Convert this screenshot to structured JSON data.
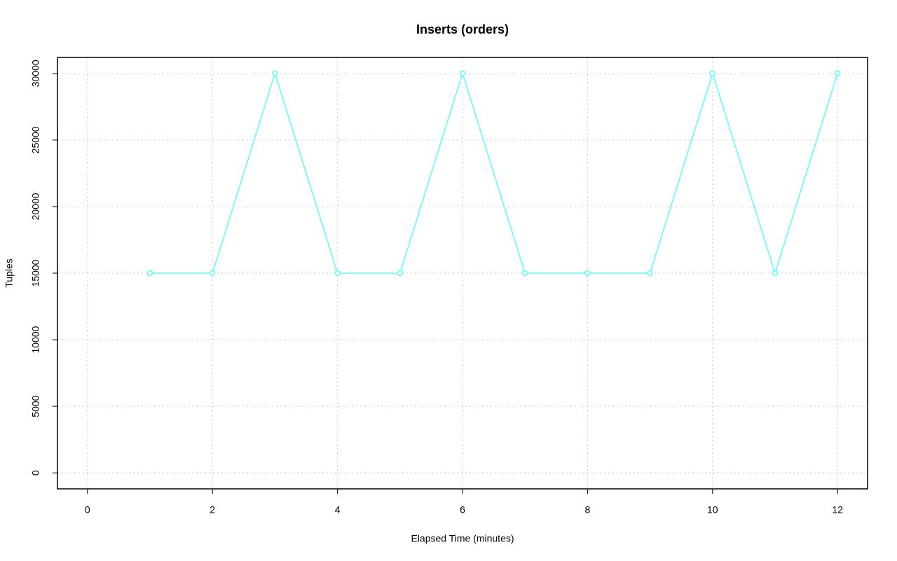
{
  "chart_data": {
    "type": "line",
    "title": "Inserts (orders)",
    "x_label": "Elapsed Time (minutes)",
    "y_label": "Tuples",
    "x": [
      1,
      2,
      3,
      4,
      5,
      6,
      7,
      8,
      9,
      10,
      11,
      12
    ],
    "series": [
      {
        "color": "#55ffff",
        "values": [
          15000,
          15000,
          30000,
          15000,
          15000,
          30000,
          15000,
          15000,
          15000,
          30000,
          15000,
          30000
        ]
      }
    ],
    "xlim": [
      -0.48,
      12.48
    ],
    "ylim": [
      -1200,
      31200
    ],
    "xticks": [
      0,
      2,
      4,
      6,
      8,
      10,
      12
    ],
    "yticks": [
      0,
      5000,
      10000,
      15000,
      20000,
      25000,
      30000
    ],
    "grid": true
  }
}
